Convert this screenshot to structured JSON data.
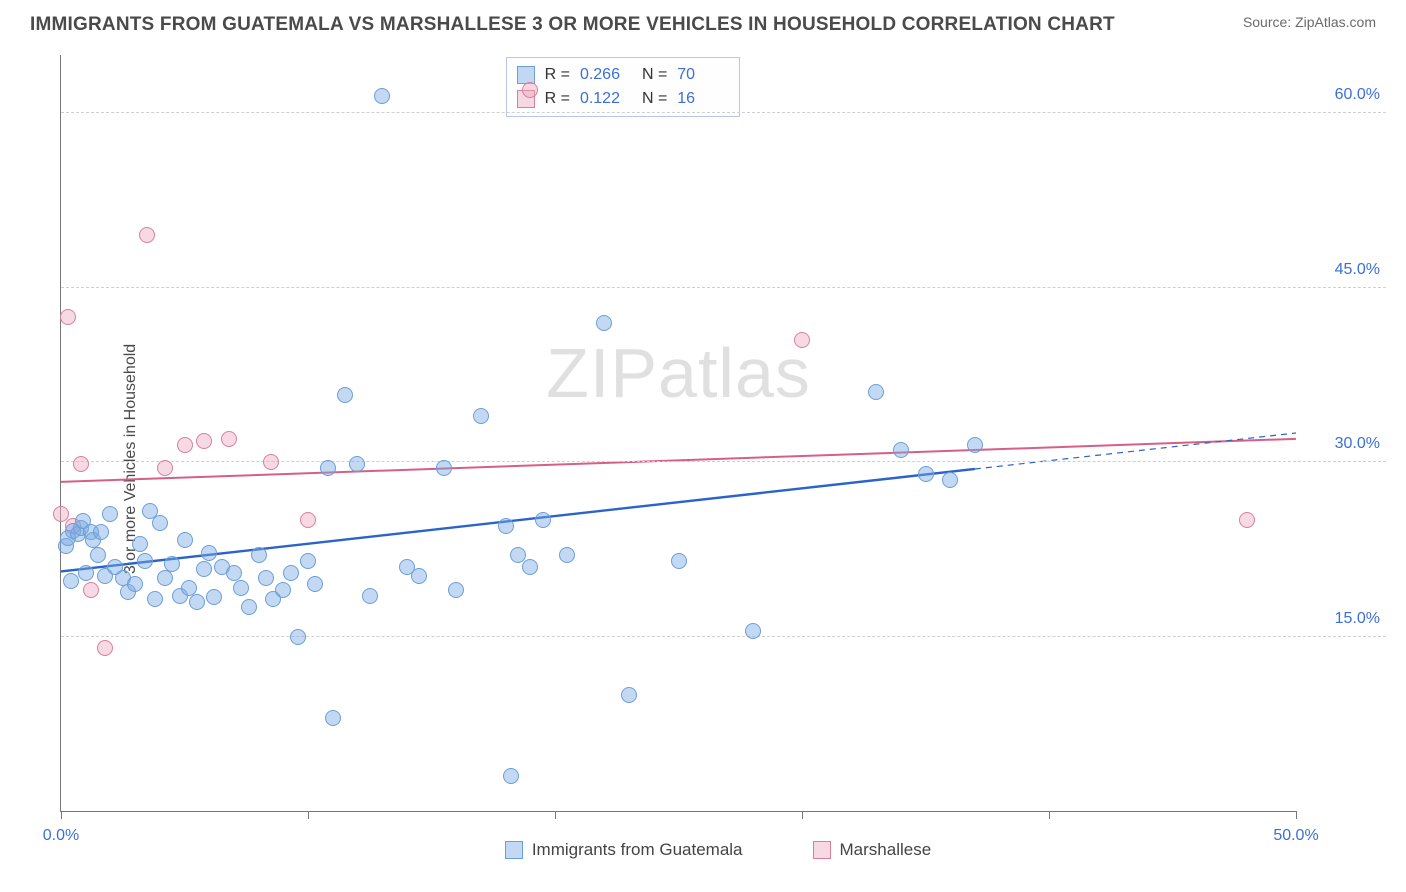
{
  "header": {
    "title": "IMMIGRANTS FROM GUATEMALA VS MARSHALLESE 3 OR MORE VEHICLES IN HOUSEHOLD CORRELATION CHART",
    "source_label": "Source:",
    "source_value": "ZipAtlas.com"
  },
  "ylabel": "3 or more Vehicles in Household",
  "watermark": "ZIPatlas",
  "axes": {
    "xlim": [
      0,
      50
    ],
    "ylim": [
      0,
      65
    ],
    "xticks": [
      0,
      10,
      20,
      30,
      40,
      50
    ],
    "xtick_labels": {
      "0": "0.0%",
      "50": "50.0%"
    },
    "grid_y": [
      15,
      30,
      45,
      60
    ],
    "ytick_labels": {
      "15": "15.0%",
      "30": "30.0%",
      "45": "45.0%",
      "60": "60.0%"
    },
    "grid_color": "#cfcfcf",
    "axis_color": "#777777",
    "tick_label_color": "#3b6fd8"
  },
  "series": {
    "blue": {
      "label": "Immigrants from Guatemala",
      "fill": "rgba(122,168,227,0.45)",
      "stroke": "#6a9fd8",
      "marker_radius": 8,
      "R": "0.266",
      "N": "70",
      "trend": {
        "x1": 0,
        "y1": 20.6,
        "x2": 50,
        "y2": 32.5,
        "solid_until_x": 37,
        "color": "#2a63c9",
        "width": 2.4
      },
      "points": [
        [
          0.2,
          22.8
        ],
        [
          0.3,
          23.5
        ],
        [
          0.4,
          19.8
        ],
        [
          0.5,
          24.1
        ],
        [
          0.7,
          23.8
        ],
        [
          0.8,
          24.3
        ],
        [
          0.9,
          24.9
        ],
        [
          1.0,
          20.5
        ],
        [
          1.2,
          24.0
        ],
        [
          1.3,
          23.3
        ],
        [
          1.5,
          22.0
        ],
        [
          1.6,
          24.0
        ],
        [
          1.8,
          20.2
        ],
        [
          2.0,
          25.5
        ],
        [
          2.2,
          21.0
        ],
        [
          2.5,
          20.0
        ],
        [
          2.7,
          18.8
        ],
        [
          3.0,
          19.5
        ],
        [
          3.2,
          23.0
        ],
        [
          3.4,
          21.5
        ],
        [
          3.6,
          25.8
        ],
        [
          3.8,
          18.2
        ],
        [
          4.0,
          24.8
        ],
        [
          4.2,
          20.0
        ],
        [
          4.5,
          21.2
        ],
        [
          4.8,
          18.5
        ],
        [
          5.0,
          23.3
        ],
        [
          5.2,
          19.2
        ],
        [
          5.5,
          18.0
        ],
        [
          5.8,
          20.8
        ],
        [
          6.0,
          22.2
        ],
        [
          6.2,
          18.4
        ],
        [
          6.5,
          21.0
        ],
        [
          7.0,
          20.5
        ],
        [
          7.3,
          19.2
        ],
        [
          7.6,
          17.5
        ],
        [
          8.0,
          22.0
        ],
        [
          8.3,
          20.0
        ],
        [
          8.6,
          18.2
        ],
        [
          9.0,
          19.0
        ],
        [
          9.3,
          20.5
        ],
        [
          9.6,
          15.0
        ],
        [
          10.0,
          21.5
        ],
        [
          10.3,
          19.5
        ],
        [
          10.8,
          29.5
        ],
        [
          11.0,
          8.0
        ],
        [
          11.5,
          35.8
        ],
        [
          12.0,
          29.8
        ],
        [
          12.5,
          18.5
        ],
        [
          13.0,
          61.5
        ],
        [
          14.0,
          21.0
        ],
        [
          14.5,
          20.2
        ],
        [
          15.5,
          29.5
        ],
        [
          16.0,
          19.0
        ],
        [
          17.0,
          34.0
        ],
        [
          18.0,
          24.5
        ],
        [
          18.2,
          3.0
        ],
        [
          18.5,
          22.0
        ],
        [
          19.0,
          21.0
        ],
        [
          19.5,
          25.0
        ],
        [
          20.5,
          22.0
        ],
        [
          22.0,
          42.0
        ],
        [
          23.0,
          10.0
        ],
        [
          25.0,
          21.5
        ],
        [
          28.0,
          15.5
        ],
        [
          33.0,
          36.0
        ],
        [
          34.0,
          31.0
        ],
        [
          35.0,
          29.0
        ],
        [
          36.0,
          28.5
        ],
        [
          37.0,
          31.5
        ]
      ]
    },
    "pink": {
      "label": "Marshallese",
      "fill": "rgba(236,170,190,0.45)",
      "stroke": "#d87f9d",
      "marker_radius": 8,
      "R": "0.122",
      "N": "16",
      "trend": {
        "x1": 0,
        "y1": 28.3,
        "x2": 50,
        "y2": 32.0,
        "solid_until_x": 50,
        "color": "#d65f85",
        "width": 2.0
      },
      "points": [
        [
          0.0,
          25.5
        ],
        [
          0.3,
          42.5
        ],
        [
          0.5,
          24.5
        ],
        [
          0.8,
          29.8
        ],
        [
          1.2,
          19.0
        ],
        [
          1.8,
          14.0
        ],
        [
          3.5,
          49.5
        ],
        [
          4.2,
          29.5
        ],
        [
          5.0,
          31.5
        ],
        [
          5.8,
          31.8
        ],
        [
          6.8,
          32.0
        ],
        [
          8.5,
          30.0
        ],
        [
          10.0,
          25.0
        ],
        [
          19.0,
          62.0
        ],
        [
          30.0,
          40.5
        ],
        [
          48.0,
          25.0
        ]
      ]
    }
  },
  "stats_box": {
    "rows": [
      {
        "swatch_series": "blue",
        "r_label": "R =",
        "n_label": "N ="
      },
      {
        "swatch_series": "pink",
        "r_label": "R =",
        "n_label": "N ="
      }
    ]
  },
  "bottom_legend": [
    {
      "series": "blue"
    },
    {
      "series": "pink"
    }
  ],
  "colors": {
    "background": "#ffffff",
    "title": "#4a4a4a",
    "source": "#6a6a6a"
  }
}
